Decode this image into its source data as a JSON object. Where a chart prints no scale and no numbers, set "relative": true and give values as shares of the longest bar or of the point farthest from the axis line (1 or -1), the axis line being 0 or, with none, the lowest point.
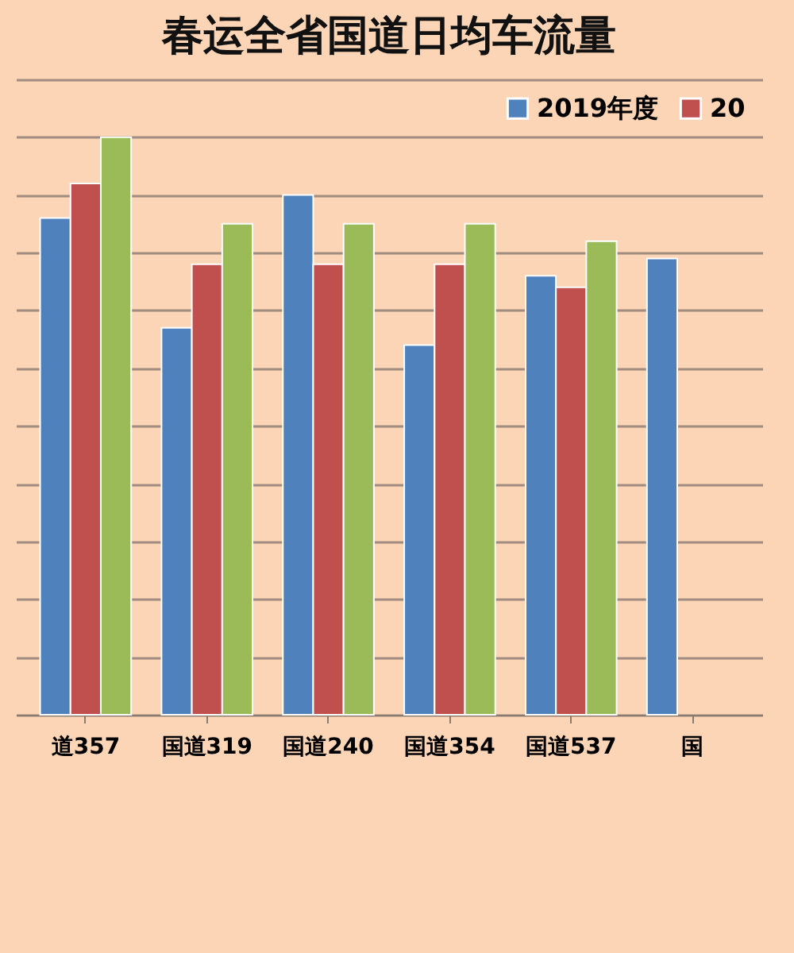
{
  "chart_data": {
    "type": "bar",
    "title": "春运全省国道日均车流量",
    "relative": true,
    "grid": "y",
    "legend": "top right",
    "categories": [
      "道357",
      "国道319",
      "国道240",
      "国道354",
      "国道537",
      "国"
    ],
    "series": [
      {
        "name": "2019年度",
        "color": "#4f81bd",
        "values": [
          0.86,
          0.67,
          0.9,
          0.64,
          0.76,
          0.79
        ]
      },
      {
        "name": "20",
        "color": "#c0504d",
        "values": [
          0.92,
          0.78,
          0.78,
          0.78,
          0.74,
          null
        ]
      },
      {
        "color": "#9bbb59",
        "values": [
          1,
          0.85,
          0.85,
          0.85,
          0.82,
          null
        ]
      }
    ]
  }
}
